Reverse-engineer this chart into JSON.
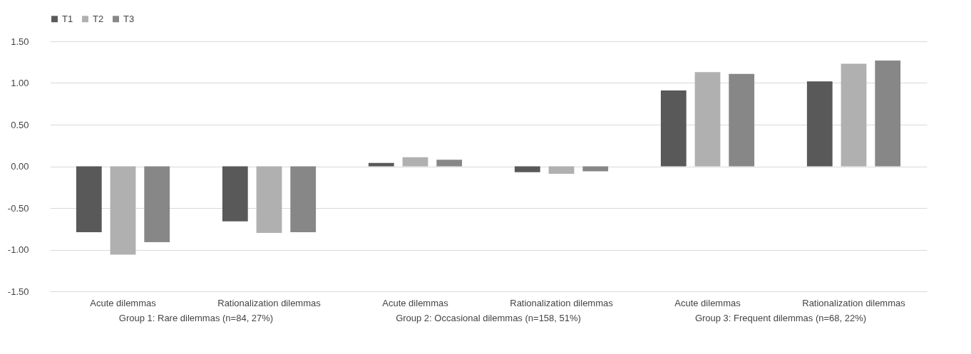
{
  "chart_data": {
    "type": "bar",
    "categories": [
      "Acute dilemmas",
      "Rationalization dilemmas",
      "Acute dilemmas",
      "Rationalization dilemmas",
      "Acute dilemmas",
      "Rationalization dilemmas"
    ],
    "series": [
      {
        "name": "T1",
        "color": "#595959",
        "values": [
          -0.79,
          -0.66,
          0.04,
          -0.07,
          0.91,
          1.02
        ]
      },
      {
        "name": "T2",
        "color": "#b0b0b0",
        "values": [
          -1.06,
          -0.8,
          0.11,
          -0.09,
          1.13,
          1.23
        ]
      },
      {
        "name": "T3",
        "color": "#878787",
        "values": [
          -0.91,
          -0.79,
          0.08,
          -0.06,
          1.11,
          1.27
        ]
      }
    ],
    "annotations": [
      "Group 1: Rare dilemmas (n=84, 27%)",
      "Group 2: Occasional dilemmas (n=158, 51%)",
      "Group 3: Frequent dilemmas (n=68, 22%)"
    ],
    "ylim": [
      -1.5,
      1.5
    ],
    "yticks": [
      {
        "value": -1.5,
        "label": "-1.50"
      },
      {
        "value": -1,
        "label": "-1.00"
      },
      {
        "value": -0.5,
        "label": "-0.50"
      },
      {
        "value": 0,
        "label": "0.00"
      },
      {
        "value": 0.5,
        "label": "0.50"
      },
      {
        "value": 1,
        "label": "1.00"
      },
      {
        "value": 1.5,
        "label": "1.50"
      }
    ],
    "grid": "y",
    "legend": "top"
  }
}
